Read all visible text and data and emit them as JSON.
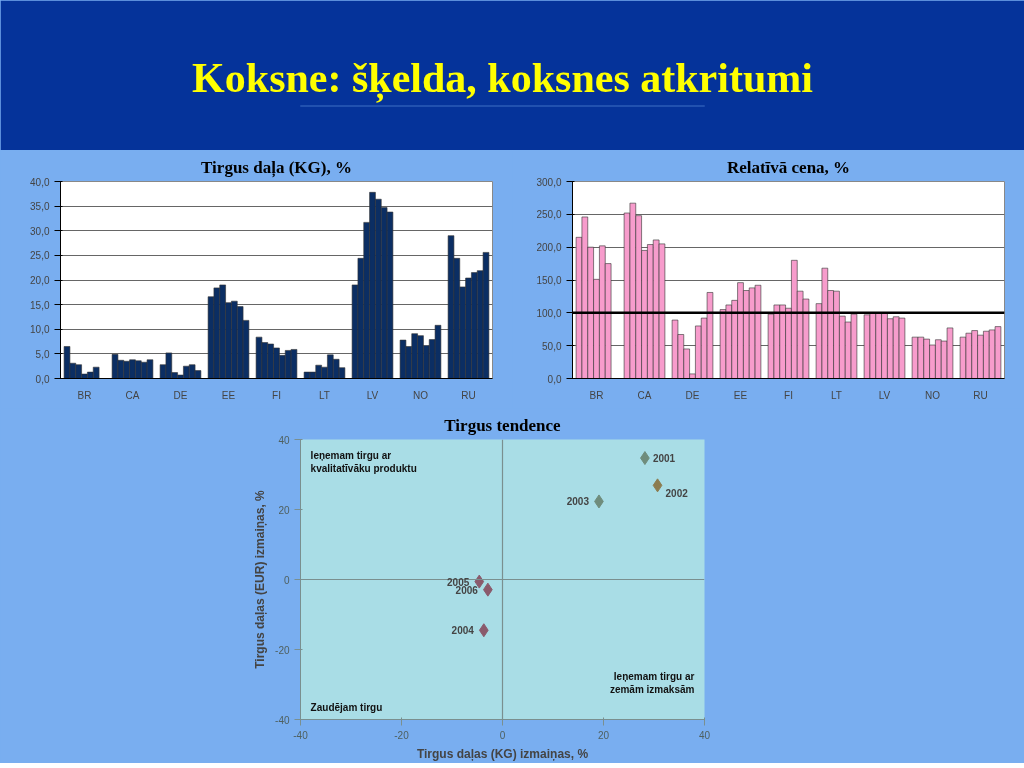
{
  "chart_data": [
    {
      "type": "other",
      "title": "Koksne: šķelda, koksnes atkritumi"
    },
    {
      "type": "bar",
      "title": "Tirgus daļa (KG), %",
      "categories": [
        "BR",
        "CA",
        "DE",
        "EE",
        "FI",
        "LT",
        "LV",
        "NO",
        "RU"
      ],
      "series": [
        {
          "color": "#0b2e63",
          "values": [
            6.5,
            4.9,
            2.8,
            16.6,
            8.4,
            1.3,
            19.0,
            7.8,
            29.0
          ]
        },
        {
          "color": "#0b2e63",
          "values": [
            3.1,
            3.7,
            5.2,
            18.4,
            7.3,
            1.3,
            24.4,
            6.5,
            24.4
          ]
        },
        {
          "color": "#0b2e63",
          "values": [
            2.8,
            3.5,
            1.2,
            19.0,
            7.0,
            2.7,
            31.7,
            9.1,
            18.6
          ]
        },
        {
          "color": "#0b2e63",
          "values": [
            0.9,
            3.8,
            0.7,
            15.4,
            6.2,
            2.3,
            37.8,
            8.7,
            20.4
          ]
        },
        {
          "color": "#0b2e63",
          "values": [
            1.3,
            3.6,
            2.5,
            15.7,
            4.7,
            4.8,
            36.4,
            6.7,
            21.5
          ]
        },
        {
          "color": "#0b2e63",
          "values": [
            2.3,
            3.3,
            2.8,
            14.6,
            5.7,
            3.9,
            34.7,
            7.9,
            21.9
          ]
        },
        {
          "color": "#0b2e63",
          "values": [
            null,
            3.8,
            1.6,
            11.8,
            5.9,
            2.2,
            33.8,
            10.8,
            25.6
          ]
        }
      ],
      "ylim": [
        0,
        40
      ],
      "yticks": [
        {
          "value": 0,
          "label": "0,0"
        },
        {
          "value": 5,
          "label": "5,0"
        },
        {
          "value": 10,
          "label": "10,0"
        },
        {
          "value": 15,
          "label": "15,0"
        },
        {
          "value": 20,
          "label": "20,0"
        },
        {
          "value": 25,
          "label": "25,0"
        },
        {
          "value": 30,
          "label": "30,0"
        },
        {
          "value": 35,
          "label": "35,0"
        },
        {
          "value": 40,
          "label": "40,0"
        }
      ],
      "grid": "y"
    },
    {
      "type": "bar",
      "title": "Relatīvā cena, %",
      "categories": [
        "BR",
        "CA",
        "DE",
        "EE",
        "FI",
        "LT",
        "LV",
        "NO",
        "RU"
      ],
      "series": [
        {
          "color": "#f79ccc",
          "values": [
            215,
            252,
            89,
            105,
            98,
            114,
            97,
            63,
            63
          ]
        },
        {
          "color": "#f79ccc",
          "values": [
            246,
            267,
            67,
            112,
            112,
            168,
            99,
            63,
            69
          ]
        },
        {
          "color": "#f79ccc",
          "values": [
            200,
            248,
            45,
            119,
            112,
            134,
            100,
            60,
            73
          ]
        },
        {
          "color": "#f79ccc",
          "values": [
            151,
            195,
            7,
            146,
            107,
            133,
            100,
            51,
            66
          ]
        },
        {
          "color": "#f79ccc",
          "values": [
            202,
            204,
            80,
            134,
            180,
            95,
            91,
            59,
            72
          ]
        },
        {
          "color": "#f79ccc",
          "values": [
            175,
            211,
            92,
            138,
            133,
            86,
            94,
            57,
            74
          ]
        },
        {
          "color": "#f79ccc",
          "values": [
            null,
            205,
            131,
            142,
            121,
            98,
            92,
            77,
            79
          ]
        }
      ],
      "ylim": [
        0,
        300
      ],
      "yticks": [
        {
          "value": 0,
          "label": "0,0"
        },
        {
          "value": 50,
          "label": "50,0"
        },
        {
          "value": 100,
          "label": "100,0"
        },
        {
          "value": 150,
          "label": "150,0"
        },
        {
          "value": 200,
          "label": "200,0"
        },
        {
          "value": 250,
          "label": "250,0"
        },
        {
          "value": 300,
          "label": "300,0"
        }
      ],
      "ref_lines": [
        {
          "axis": "y",
          "value": 100,
          "color": "#000000"
        }
      ],
      "grid": "y"
    },
    {
      "type": "scatter",
      "title": "Tirgus tendence",
      "xlabel": "Tirgus daļas (KG) izmaiņas, %",
      "ylabel": "Tirgus daļas (EUR) izmaiņas, %",
      "x": [
        28.2,
        30.7,
        19.1,
        -3.7,
        -4.6,
        -2.9
      ],
      "values": [
        34.7,
        26.9,
        22.3,
        -14.5,
        -0.6,
        -2.9
      ],
      "colors": [
        "#6f8c7c",
        "#8c7c50",
        "#6f8c7c",
        "#8a5a6c",
        "#8a5a6c",
        "#8a5a6c"
      ],
      "marker": "diamond",
      "xlim": [
        -40,
        40
      ],
      "xticks": [
        -40,
        -20,
        0,
        20,
        40
      ],
      "ylim": [
        -40,
        40
      ],
      "yticks": [
        -40,
        -20,
        0,
        20,
        40
      ],
      "grid": false,
      "ref_lines": [
        {
          "axis": "x",
          "value": 0,
          "color": "#7a8f8f"
        },
        {
          "axis": "y",
          "value": 0,
          "color": "#7a8f8f"
        }
      ],
      "annotations": [
        {
          "text": "2001",
          "x": 28.2,
          "y": 34.7
        },
        {
          "text": "2002",
          "x": 30.7,
          "y": 26.9
        },
        {
          "text": "2003",
          "x": 19.1,
          "y": 22.3
        },
        {
          "text": "2004",
          "x": -3.7,
          "y": -14.5
        },
        {
          "text": "2005",
          "x": -4.6,
          "y": -0.6
        },
        {
          "text": "2006",
          "x": -2.9,
          "y": -2.9
        },
        "Ieņemam tirgu ar\nkvalitatīvāku produktu",
        "Ieņemam tirgu ar\nzemām izmaksām",
        "Zaudējam tirgu"
      ]
    }
  ]
}
